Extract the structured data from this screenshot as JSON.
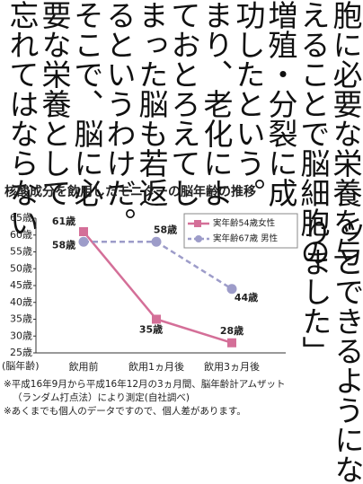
{
  "article": {
    "columns": [
      "胞に必要な栄養を与",
      "えることで脳細胞の",
      "増殖・分裂に成",
      "功したという。つ",
      "まり、老化によっ",
      "ておとろえてし",
      "まった脳も若返",
      "るというわけだ。",
      "そこで、脳に必",
      "要な栄養として",
      "忘れてはならない"
    ],
    "side_columns": [
      "ッとできるようにな",
      "りました」"
    ]
  },
  "chart_data": {
    "type": "line",
    "title": "核酸成分を飲用したモニターの脳年齢の推移",
    "y_label": "(脳年齢)",
    "categories": [
      "飲用前",
      "飲用1ヵ月後",
      "飲用3ヵ月後"
    ],
    "ylim": [
      25,
      65
    ],
    "yticks": [
      {
        "value": 25,
        "label": "25歳"
      },
      {
        "value": 30,
        "label": "30歳"
      },
      {
        "value": 35,
        "label": "35歳"
      },
      {
        "value": 40,
        "label": "40歳"
      },
      {
        "value": 45,
        "label": "45歳"
      },
      {
        "value": 50,
        "label": "50歳"
      },
      {
        "value": 55,
        "label": "55歳"
      },
      {
        "value": 60,
        "label": "60歳"
      },
      {
        "value": 65,
        "label": "65歳"
      }
    ],
    "legend": "upper right",
    "series": [
      {
        "name": "実年齢54歳女性",
        "color": "#d46f98",
        "line_style": "solid",
        "marker": "square",
        "values": [
          61,
          35,
          28
        ],
        "value_labels": [
          "61歳",
          "35歳",
          "28歳"
        ]
      },
      {
        "name": "実年齢67歳 男性",
        "color": "#9d9cc9",
        "line_style": "dashed",
        "marker": "circle",
        "values": [
          58,
          58,
          44
        ],
        "value_labels": [
          "58歳",
          "58歳",
          "44歳"
        ]
      }
    ],
    "notes": [
      "※平成16年9月から平成16年12月の3ヵ月間、脳年齢計アムザット",
      "（ランダム打点法）により測定(自社調べ)",
      "※あくまでも個人のデータですので、個人差があります。"
    ]
  }
}
